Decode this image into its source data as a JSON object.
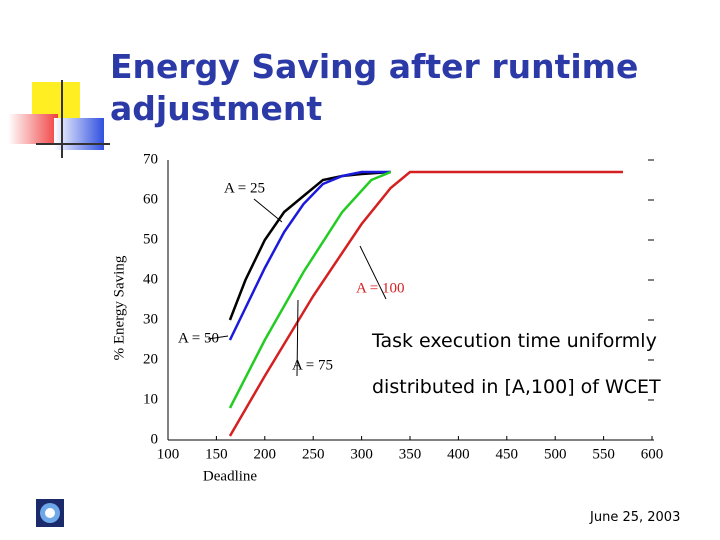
{
  "title": "Energy Saving after runtime adjustment",
  "footer": {
    "date": "June 25, 2003"
  },
  "chart_data": {
    "type": "line",
    "xlabel": "Deadline",
    "ylabel": "% Energy Saving",
    "xlim": [
      100,
      600
    ],
    "ylim": [
      0,
      70
    ],
    "xticks": [
      100,
      150,
      200,
      250,
      300,
      350,
      400,
      450,
      500,
      550,
      600
    ],
    "yticks": [
      0,
      10,
      20,
      30,
      40,
      50,
      60,
      70
    ],
    "series": [
      {
        "name": "A = 25",
        "color": "#000000",
        "x": [
          164,
          180,
          200,
          220,
          240,
          260,
          280,
          300,
          330
        ],
        "values": [
          30,
          40,
          50,
          57,
          61,
          65,
          66,
          66.5,
          67
        ]
      },
      {
        "name": "A = 50",
        "color": "#1a1adc",
        "x": [
          164,
          180,
          200,
          220,
          240,
          260,
          280,
          300,
          330
        ],
        "values": [
          25,
          33,
          43,
          52,
          59,
          64,
          66,
          67,
          67
        ]
      },
      {
        "name": "A = 75",
        "color": "#22cc22",
        "x": [
          164,
          200,
          240,
          280,
          310,
          330
        ],
        "values": [
          8,
          25,
          42,
          57,
          65,
          67
        ]
      },
      {
        "name": "A = 100",
        "color": "#d42020",
        "x": [
          164,
          200,
          250,
          300,
          330,
          350,
          570
        ],
        "values": [
          1,
          16,
          36,
          54,
          63,
          67,
          67
        ]
      }
    ],
    "annotations": [
      "Task execution time uniformly",
      "distributed in [A,100] of WCET"
    ]
  }
}
